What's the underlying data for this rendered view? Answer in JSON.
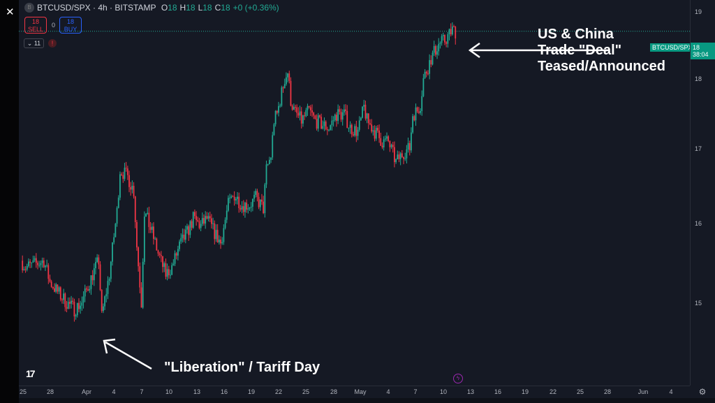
{
  "window": {
    "close_icon": "close-icon"
  },
  "legend": {
    "symbol": "BTCUSD/SPX · 4h · BITSTAMP",
    "o_label": "O",
    "o": "18",
    "h_label": "H",
    "h": "18",
    "l_label": "L",
    "l": "18",
    "c_label": "C",
    "c": "18",
    "change": "+0 (+0.36%)"
  },
  "trade": {
    "sell_price": "18",
    "sell_label": "SELL",
    "spread": "0",
    "buy_price": "18",
    "buy_label": "BUY"
  },
  "indicators": {
    "count": "⌄ 11",
    "warning": "!"
  },
  "annotations": {
    "top": [
      "US & China",
      "Trade \"Deal\"",
      "Teased/Announced"
    ],
    "bottom": "\"Liberation\" / Tariff Day"
  },
  "price_axis": {
    "ticks": [
      "19",
      "18",
      "17",
      "16",
      "15"
    ],
    "current_price": "18",
    "countdown": "38:04",
    "symbol_tag": "BTCUSD/SPX"
  },
  "time_axis": {
    "ticks": [
      "25",
      "28",
      "Apr",
      "4",
      "7",
      "10",
      "13",
      "16",
      "19",
      "22",
      "25",
      "28",
      "May",
      "4",
      "7",
      "10",
      "13",
      "16",
      "19",
      "22",
      "25",
      "28",
      "Jun",
      "4"
    ]
  },
  "colors": {
    "up": "#22ab94",
    "down": "#f23645",
    "background": "#151924"
  },
  "chart_data": {
    "type": "candlestick",
    "interval": "4h",
    "scale": "log",
    "ylim": [
      14.4,
      19.1
    ],
    "xlim": [
      "2025-03-25",
      "2025-06-06"
    ],
    "closes": [
      [
        "2025-03-25T00",
        15.29
      ],
      [
        "2025-03-25T12",
        15.21
      ],
      [
        "2025-03-26T16",
        15.25
      ],
      [
        "2025-03-27T12",
        15.29
      ],
      [
        "2025-03-28T04",
        15.03
      ],
      [
        "2025-03-29T08",
        14.86
      ],
      [
        "2025-03-30T00",
        14.78
      ],
      [
        "2025-03-30T20",
        14.7
      ],
      [
        "2025-03-31T16",
        14.78
      ],
      [
        "2025-04-01T20",
        15.12
      ],
      [
        "2025-04-02T12",
        15.29
      ],
      [
        "2025-04-02T20",
        14.61
      ],
      [
        "2025-04-03T16",
        15.12
      ],
      [
        "2025-04-04T12",
        15.91
      ],
      [
        "2025-04-04T20",
        16.46
      ],
      [
        "2025-04-05T16",
        16.37
      ],
      [
        "2025-04-06T08",
        16.18
      ],
      [
        "2025-04-06T16",
        15.47
      ],
      [
        "2025-04-07T04",
        14.78
      ],
      [
        "2025-04-07T12",
        15.91
      ],
      [
        "2025-04-08T08",
        15.64
      ],
      [
        "2025-04-09T00",
        15.38
      ],
      [
        "2025-04-09T20",
        15.12
      ],
      [
        "2025-04-10T12",
        15.21
      ],
      [
        "2025-04-11T08",
        15.47
      ],
      [
        "2025-04-12T04",
        15.64
      ],
      [
        "2025-04-12T20",
        15.82
      ],
      [
        "2025-04-13T16",
        15.73
      ],
      [
        "2025-04-14T08",
        15.82
      ],
      [
        "2025-04-15T04",
        15.64
      ],
      [
        "2025-04-15T20",
        15.51
      ],
      [
        "2025-04-16T16",
        16.0
      ],
      [
        "2025-04-17T08",
        16.13
      ],
      [
        "2025-04-18T04",
        16.0
      ],
      [
        "2025-04-19T00",
        16.0
      ],
      [
        "2025-04-19T16",
        16.09
      ],
      [
        "2025-04-20T12",
        15.95
      ],
      [
        "2025-04-20T20",
        16.46
      ],
      [
        "2025-04-21T08",
        16.65
      ],
      [
        "2025-04-21T16",
        17.13
      ],
      [
        "2025-04-22T00",
        17.22
      ],
      [
        "2025-04-22T20",
        17.72
      ],
      [
        "2025-04-23T04",
        17.82
      ],
      [
        "2025-04-23T12",
        17.42
      ],
      [
        "2025-04-23T20",
        17.27
      ],
      [
        "2025-04-24T16",
        17.13
      ],
      [
        "2025-04-25T12",
        17.27
      ],
      [
        "2025-04-26T04",
        17.13
      ],
      [
        "2025-04-27T00",
        17.07
      ],
      [
        "2025-04-27T16",
        17.03
      ],
      [
        "2025-04-28T12",
        17.22
      ],
      [
        "2025-04-29T08",
        17.22
      ],
      [
        "2025-04-30T00",
        17.03
      ],
      [
        "2025-04-30T20",
        16.98
      ],
      [
        "2025-05-01T04",
        17.13
      ],
      [
        "2025-05-01T12",
        17.32
      ],
      [
        "2025-05-01T20",
        17.13
      ],
      [
        "2025-05-02T16",
        16.98
      ],
      [
        "2025-05-03T12",
        16.84
      ],
      [
        "2025-05-04T04",
        16.84
      ],
      [
        "2025-05-05T00",
        16.56
      ],
      [
        "2025-05-05T20",
        16.7
      ],
      [
        "2025-05-06T12",
        16.75
      ],
      [
        "2025-05-06T20",
        17.22
      ],
      [
        "2025-05-07T08",
        17.27
      ],
      [
        "2025-05-07T16",
        17.36
      ],
      [
        "2025-05-08T00",
        17.72
      ],
      [
        "2025-05-08T20",
        18.02
      ],
      [
        "2025-05-09T16",
        18.23
      ],
      [
        "2025-05-10T08",
        18.28
      ],
      [
        "2025-05-11T04",
        18.44
      ],
      [
        "2025-05-11T12",
        18.42
      ]
    ]
  }
}
